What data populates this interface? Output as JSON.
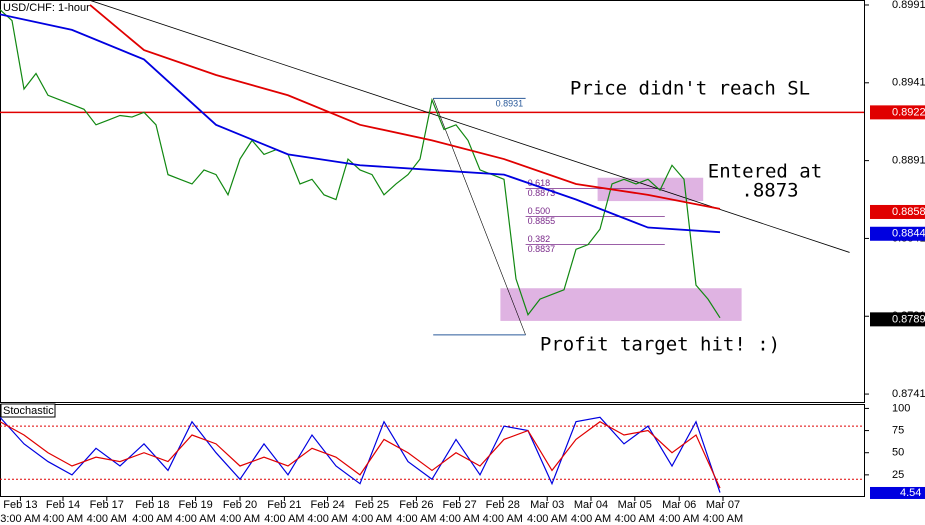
{
  "chart_data": [
    {
      "type": "line",
      "title": "USD/CHF: 1-hour",
      "xlim": [
        0,
        72
      ],
      "ylim": [
        0.87359,
        0.89942
      ],
      "yticks": [
        0.8991,
        0.8941,
        0.8891,
        0.8841,
        0.8791,
        0.8741
      ],
      "xticks": [
        {
          "value": 1.7,
          "label": "Feb 13"
        },
        {
          "value": 5.25,
          "label": "Feb 14"
        },
        {
          "value": 8.9,
          "label": "Feb 17"
        },
        {
          "value": 12.7,
          "label": "Feb 18"
        },
        {
          "value": 16.3,
          "label": "Feb 19"
        },
        {
          "value": 20,
          "label": "Feb 20"
        },
        {
          "value": 23.7,
          "label": "Feb 21"
        },
        {
          "value": 27.3,
          "label": "Feb 24"
        },
        {
          "value": 31,
          "label": "Feb 25"
        },
        {
          "value": 34.7,
          "label": "Feb 26"
        },
        {
          "value": 38.3,
          "label": "Feb 27"
        },
        {
          "value": 41.9,
          "label": "Feb 28"
        },
        {
          "value": 45.6,
          "label": "Mar 03"
        },
        {
          "value": 49.25,
          "label": "Mar 04"
        },
        {
          "value": 52.9,
          "label": "Mar 05"
        },
        {
          "value": 56.6,
          "label": "Mar 06"
        },
        {
          "value": 60.25,
          "label": "Mar 07"
        }
      ],
      "time_labels": [
        "3:00 AM",
        "4:00 AM",
        "4:00 AM",
        "4:00 AM",
        "4:00 AM",
        "4:00 AM",
        "4:00 AM",
        "4:00 AM",
        "4:00 AM",
        "4:00 AM",
        "4:00 AM",
        "4:00 AM",
        "4:00 AM",
        "4:00 AM",
        "4:00 AM",
        "4:00 AM",
        "4:00 AM"
      ],
      "series": [
        {
          "color": "#118811",
          "x": [
            0,
            1,
            2,
            3,
            4,
            5,
            6,
            7,
            8,
            9,
            10,
            11,
            12,
            13,
            14,
            15,
            16,
            17,
            18,
            19,
            20,
            21,
            22,
            23,
            24,
            25,
            26,
            27,
            28,
            29,
            30,
            31,
            32,
            33,
            34,
            35,
            36,
            37,
            38,
            39,
            40,
            41,
            42,
            43,
            44,
            45,
            46,
            47,
            48,
            49,
            50,
            51,
            52,
            53,
            54,
            55,
            56,
            57,
            58,
            59,
            60
          ],
          "values": [
            0.8988,
            0.8981,
            0.8937,
            0.8947,
            0.8933,
            0.893,
            0.8927,
            0.8924,
            0.8914,
            0.8917,
            0.892,
            0.8919,
            0.8922,
            0.8914,
            0.8882,
            0.8879,
            0.8876,
            0.8885,
            0.8882,
            0.8869,
            0.8892,
            0.8904,
            0.8895,
            0.8898,
            0.8895,
            0.8876,
            0.8879,
            0.8869,
            0.8866,
            0.8892,
            0.8885,
            0.8882,
            0.8869,
            0.8876,
            0.8882,
            0.8892,
            0.893,
            0.8911,
            0.8914,
            0.8904,
            0.8885,
            0.8882,
            0.8879,
            0.8815,
            0.8792,
            0.8802,
            0.8805,
            0.8808,
            0.8834,
            0.8837,
            0.8847,
            0.8876,
            0.8879,
            0.8876,
            0.8879,
            0.8872,
            0.8888,
            0.8879,
            0.8811,
            0.8802,
            0.879
          ]
        },
        {
          "color": "#e00000",
          "x": [
            7.5,
            12,
            18,
            24,
            30,
            36,
            42,
            48,
            54,
            60
          ],
          "values": [
            0.8991,
            0.8962,
            0.8946,
            0.8933,
            0.8914,
            0.8904,
            0.8892,
            0.8876,
            0.8869,
            0.886
          ]
        },
        {
          "color": "#0000e0",
          "x": [
            0,
            6,
            12,
            18,
            24,
            30,
            36,
            42,
            48,
            54,
            60
          ],
          "values": [
            0.8985,
            0.8975,
            0.8956,
            0.8914,
            0.8895,
            0.8888,
            0.8885,
            0.8882,
            0.8866,
            0.8848,
            0.8845
          ]
        }
      ],
      "trendline": {
        "x": [
          7.5,
          70.8
        ],
        "values": [
          0.8994,
          0.8832
        ]
      },
      "hline": {
        "value": 0.8922,
        "color": "#e00000"
      },
      "levels": [
        {
          "value": 0.8922,
          "color": "#e00000"
        },
        {
          "value": 0.8858,
          "color": "#e00000"
        },
        {
          "value": 0.8844,
          "color": "#0000e0"
        },
        {
          "value": 0.8789,
          "color": "#000000"
        }
      ],
      "zones": [
        {
          "x": [
            49.8,
            58.6
          ],
          "values": [
            0.888,
            0.8865
          ]
        },
        {
          "x": [
            41.7,
            61.8
          ],
          "values": [
            0.8809,
            0.8788
          ]
        }
      ],
      "fib": {
        "x": [
          36.1,
          43.8,
          55.4
        ],
        "high": 0.8931,
        "low": 0.8779,
        "levels": [
          {
            "ratio": 0.618,
            "price": 0.8873
          },
          {
            "ratio": {
              "value": 0.5,
              "label": "0.500"
            },
            "price": 0.8855
          },
          {
            "ratio": 0.382,
            "price": 0.8837
          }
        ]
      },
      "annotations": [
        "Price didn't reach SL",
        "Entered at",
        ".8873",
        "Profit target hit! :)"
      ]
    },
    {
      "type": "line",
      "title": "Stochastic",
      "xlim": [
        0,
        72
      ],
      "ylim": [
        0,
        105
      ],
      "yticks": [
        100,
        75,
        50,
        25
      ],
      "levels": [
        80,
        20
      ],
      "series": [
        {
          "color": "#0000e0",
          "x": [
            0,
            2,
            4,
            6,
            8,
            10,
            12,
            14,
            16,
            18,
            20,
            22,
            24,
            26,
            28,
            30,
            32,
            34,
            36,
            38,
            40,
            42,
            44,
            46,
            48,
            50,
            52,
            54,
            56,
            58,
            60
          ],
          "values": [
            90,
            60,
            40,
            25,
            55,
            35,
            60,
            30,
            85,
            50,
            20,
            60,
            25,
            70,
            35,
            15,
            85,
            40,
            20,
            65,
            25,
            80,
            75,
            15,
            85,
            90,
            60,
            80,
            35,
            85,
            5
          ]
        },
        {
          "color": "#e00000",
          "x": [
            0,
            2,
            4,
            6,
            8,
            10,
            12,
            14,
            16,
            18,
            20,
            22,
            24,
            26,
            28,
            30,
            32,
            34,
            36,
            38,
            40,
            42,
            44,
            46,
            48,
            50,
            52,
            54,
            56,
            58,
            60
          ],
          "values": [
            85,
            70,
            50,
            35,
            45,
            40,
            50,
            40,
            70,
            60,
            35,
            45,
            35,
            55,
            45,
            25,
            65,
            50,
            30,
            50,
            35,
            65,
            75,
            30,
            65,
            85,
            70,
            75,
            50,
            70,
            10
          ]
        }
      ],
      "last_value": 4.54
    }
  ]
}
